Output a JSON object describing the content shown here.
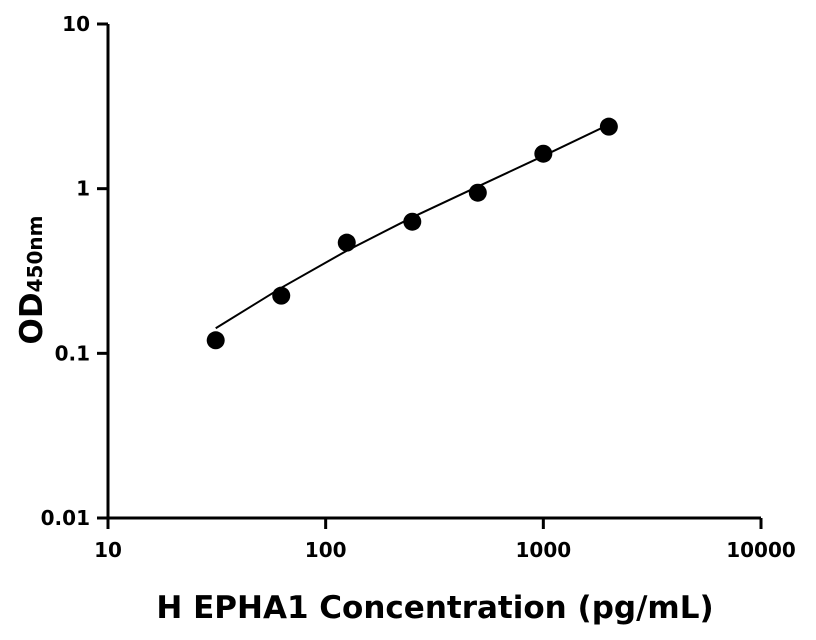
{
  "chart_data": {
    "type": "scatter",
    "x_label": "H EPHA1 Concentration (pg/mL)",
    "y_label": "OD",
    "y_label_sub": "450nm",
    "x": [
      31.25,
      62.5,
      125,
      250,
      500,
      1000,
      2000
    ],
    "series": [
      {
        "style": "marker",
        "color": "#000000",
        "values": [
          0.12,
          0.224,
          0.47,
          0.63,
          0.945,
          1.63,
          2.38
        ]
      },
      {
        "style": "line",
        "color": "#000000",
        "values": [
          0.142,
          0.25,
          0.42,
          0.67,
          1.03,
          1.58,
          2.45
        ]
      }
    ],
    "xscale": "log",
    "yscale": "log",
    "xlim": [
      10,
      10000
    ],
    "ylim": [
      0.01,
      10
    ],
    "xticks": [
      10,
      100,
      1000,
      10000
    ],
    "yticks": [
      0.01,
      0.1,
      1,
      10
    ]
  }
}
